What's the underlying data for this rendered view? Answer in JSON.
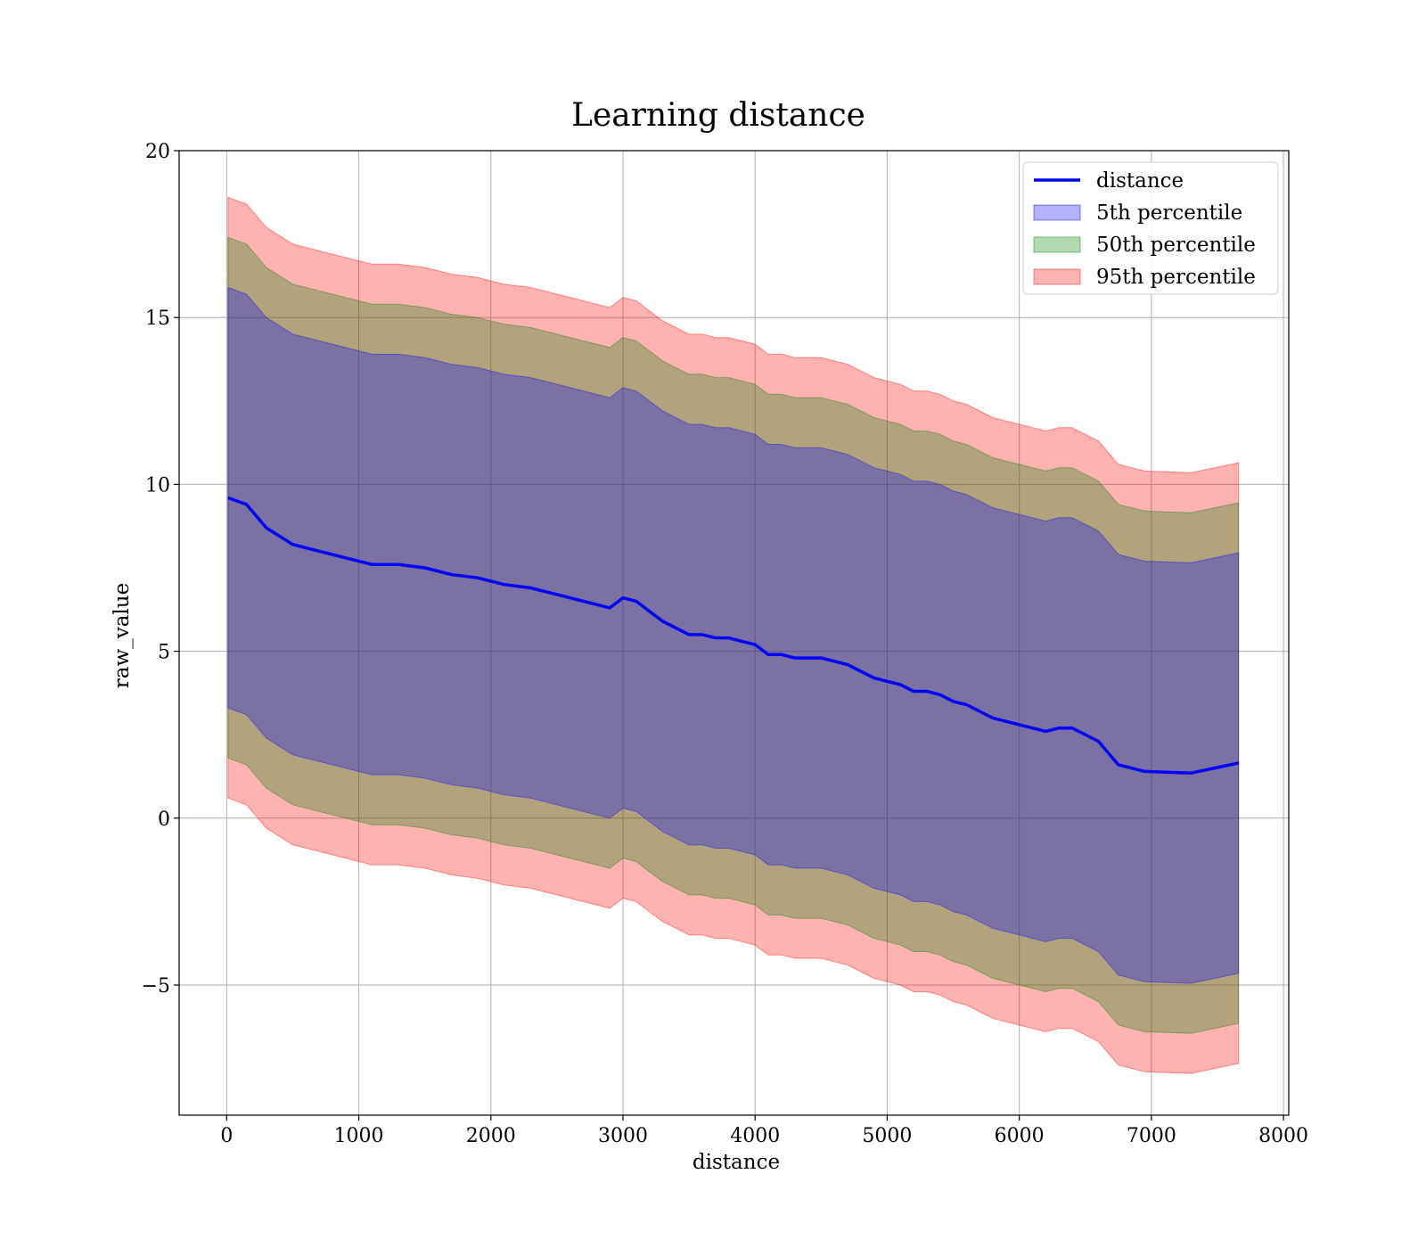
{
  "chart_data": {
    "type": "line",
    "title": "Learning distance",
    "xlabel": "distance",
    "ylabel": "raw_value",
    "xlim": [
      -360,
      8040
    ],
    "ylim": [
      -8.9,
      20
    ],
    "x_ticks": [
      0,
      1000,
      2000,
      3000,
      4000,
      5000,
      6000,
      7000,
      8000
    ],
    "x_tick_labels": [
      "0",
      "1000",
      "2000",
      "3000",
      "4000",
      "5000",
      "6000",
      "7000",
      "8000"
    ],
    "y_ticks": [
      -5,
      0,
      5,
      10,
      15,
      20
    ],
    "y_tick_labels": [
      "−5",
      "0",
      "5",
      "10",
      "15",
      "20"
    ],
    "grid": true,
    "legend_position": "top-right",
    "x": [
      10,
      150,
      300,
      500,
      700,
      900,
      1100,
      1300,
      1500,
      1700,
      1900,
      2100,
      2300,
      2500,
      2700,
      2900,
      3000,
      3100,
      3200,
      3300,
      3400,
      3500,
      3600,
      3700,
      3800,
      3900,
      4000,
      4100,
      4200,
      4300,
      4400,
      4500,
      4600,
      4700,
      4800,
      4900,
      5000,
      5100,
      5200,
      5300,
      5400,
      5500,
      5600,
      5700,
      5800,
      5900,
      6000,
      6100,
      6200,
      6300,
      6400,
      6500,
      6600,
      6750,
      6950,
      7300,
      7660
    ],
    "series": [
      {
        "name": "distance",
        "kind": "line",
        "color": "#0000ff",
        "values": [
          9.6,
          9.4,
          8.7,
          8.2,
          8.0,
          7.8,
          7.6,
          7.6,
          7.5,
          7.3,
          7.2,
          7.0,
          6.9,
          6.7,
          6.5,
          6.3,
          6.6,
          6.5,
          6.2,
          5.9,
          5.7,
          5.5,
          5.5,
          5.4,
          5.4,
          5.3,
          5.2,
          4.9,
          4.9,
          4.8,
          4.8,
          4.8,
          4.7,
          4.6,
          4.4,
          4.2,
          4.1,
          4.0,
          3.8,
          3.8,
          3.7,
          3.5,
          3.4,
          3.2,
          3.0,
          2.9,
          2.8,
          2.7,
          2.6,
          2.7,
          2.7,
          2.5,
          2.3,
          1.6,
          1.4,
          1.35,
          1.65
        ]
      },
      {
        "name": "5th percentile",
        "kind": "band",
        "color": "#0000ff",
        "opacity": 0.3,
        "half_width": [
          6.3,
          6.3,
          6.3,
          6.3,
          6.3,
          6.3,
          6.3,
          6.3,
          6.3,
          6.3,
          6.3,
          6.3,
          6.3,
          6.3,
          6.3,
          6.3,
          6.3,
          6.3,
          6.3,
          6.3,
          6.3,
          6.3,
          6.3,
          6.3,
          6.3,
          6.3,
          6.3,
          6.3,
          6.3,
          6.3,
          6.3,
          6.3,
          6.3,
          6.3,
          6.3,
          6.3,
          6.3,
          6.3,
          6.3,
          6.3,
          6.3,
          6.3,
          6.3,
          6.3,
          6.3,
          6.3,
          6.3,
          6.3,
          6.3,
          6.3,
          6.3,
          6.3,
          6.3,
          6.3,
          6.3,
          6.3,
          6.3
        ]
      },
      {
        "name": "50th percentile",
        "kind": "band",
        "color": "#008000",
        "opacity": 0.3,
        "half_width": [
          7.8,
          7.8,
          7.8,
          7.8,
          7.8,
          7.8,
          7.8,
          7.8,
          7.8,
          7.8,
          7.8,
          7.8,
          7.8,
          7.8,
          7.8,
          7.8,
          7.8,
          7.8,
          7.8,
          7.8,
          7.8,
          7.8,
          7.8,
          7.8,
          7.8,
          7.8,
          7.8,
          7.8,
          7.8,
          7.8,
          7.8,
          7.8,
          7.8,
          7.8,
          7.8,
          7.8,
          7.8,
          7.8,
          7.8,
          7.8,
          7.8,
          7.8,
          7.8,
          7.8,
          7.8,
          7.8,
          7.8,
          7.8,
          7.8,
          7.8,
          7.8,
          7.8,
          7.8,
          7.8,
          7.8,
          7.8,
          7.8
        ]
      },
      {
        "name": "95th percentile",
        "kind": "band",
        "color": "#ff0000",
        "opacity": 0.3,
        "half_width": [
          9.0,
          9.0,
          9.0,
          9.0,
          9.0,
          9.0,
          9.0,
          9.0,
          9.0,
          9.0,
          9.0,
          9.0,
          9.0,
          9.0,
          9.0,
          9.0,
          9.0,
          9.0,
          9.0,
          9.0,
          9.0,
          9.0,
          9.0,
          9.0,
          9.0,
          9.0,
          9.0,
          9.0,
          9.0,
          9.0,
          9.0,
          9.0,
          9.0,
          9.0,
          9.0,
          9.0,
          9.0,
          9.0,
          9.0,
          9.0,
          9.0,
          9.0,
          9.0,
          9.0,
          9.0,
          9.0,
          9.0,
          9.0,
          9.0,
          9.0,
          9.0,
          9.0,
          9.0,
          9.0,
          9.0,
          9.0,
          9.0
        ]
      }
    ]
  }
}
